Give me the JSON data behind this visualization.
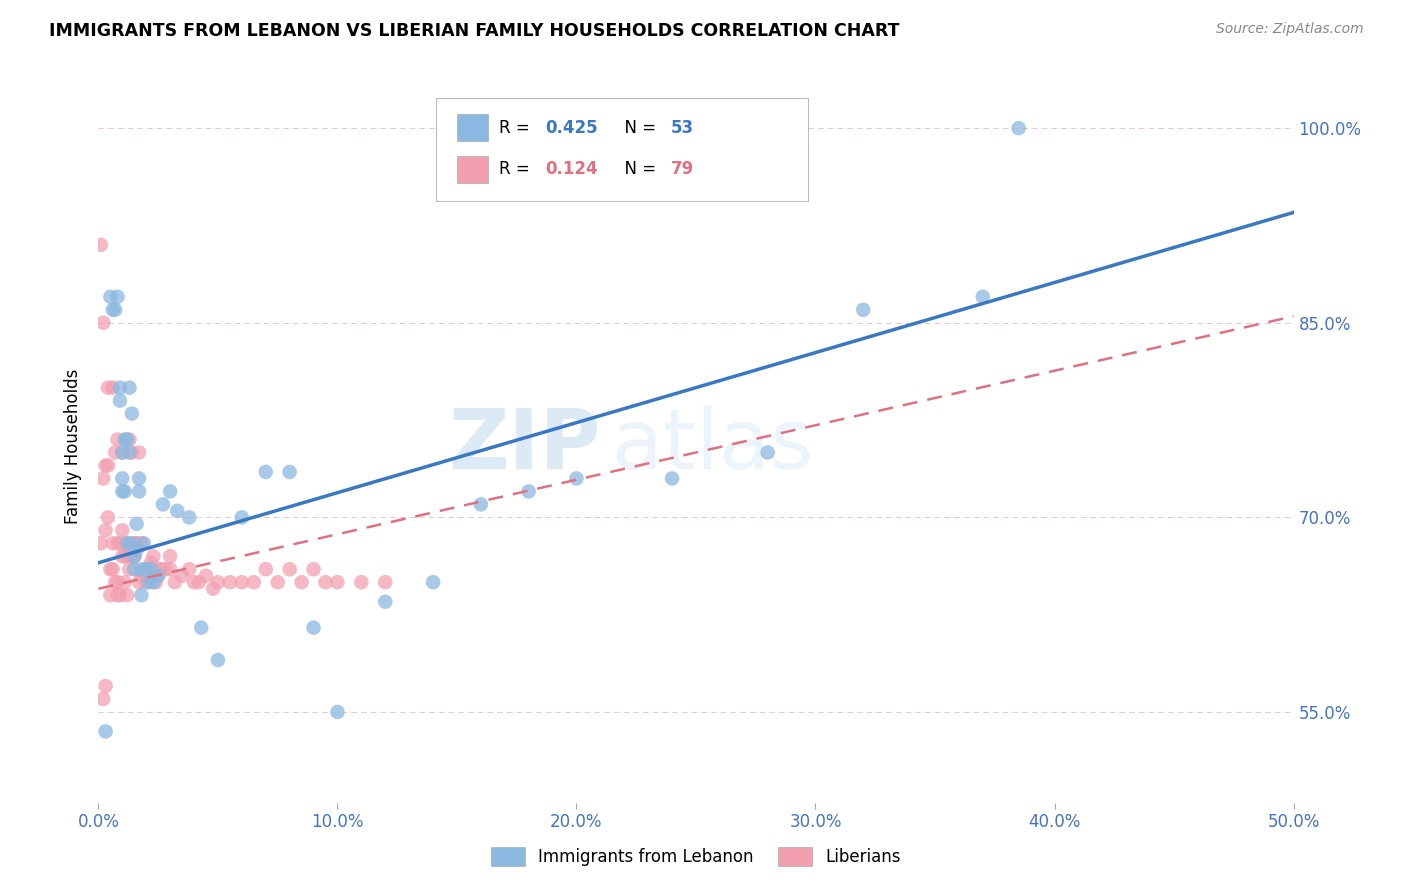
{
  "title": "IMMIGRANTS FROM LEBANON VS LIBERIAN FAMILY HOUSEHOLDS CORRELATION CHART",
  "source": "Source: ZipAtlas.com",
  "ylabel": "Family Households",
  "xlim": [
    0.0,
    0.5
  ],
  "ylim": [
    0.48,
    1.03
  ],
  "xticks": [
    0.0,
    0.1,
    0.2,
    0.3,
    0.4,
    0.5
  ],
  "xticklabels": [
    "0.0%",
    "10.0%",
    "20.0%",
    "30.0%",
    "40.0%",
    "50.0%"
  ],
  "yticks": [
    0.55,
    0.7,
    0.85,
    1.0
  ],
  "yticklabels": [
    "55.0%",
    "70.0%",
    "85.0%",
    "100.0%"
  ],
  "y_axis_color": "#4472C4",
  "x_axis_color": "#4472C4",
  "color_lebanon": "#8BB8E0",
  "color_liberian": "#F2A0B0",
  "color_trendline_lebanon": "#3A78C3",
  "color_trendline_liberian": "#E07080",
  "watermark_zip": "ZIP",
  "watermark_atlas": "atlas",
  "trendline_lb_x0": 0.0,
  "trendline_lb_y0": 0.665,
  "trendline_lb_x1": 0.5,
  "trendline_lb_y1": 0.935,
  "trendline_li_x0": 0.0,
  "trendline_li_y0": 0.645,
  "trendline_li_x1": 0.5,
  "trendline_li_y1": 0.855,
  "lebanon_scatter_x": [
    0.003,
    0.005,
    0.006,
    0.007,
    0.008,
    0.009,
    0.009,
    0.01,
    0.01,
    0.01,
    0.011,
    0.011,
    0.012,
    0.012,
    0.013,
    0.013,
    0.014,
    0.014,
    0.015,
    0.015,
    0.016,
    0.016,
    0.017,
    0.017,
    0.018,
    0.018,
    0.019,
    0.02,
    0.021,
    0.022,
    0.023,
    0.025,
    0.027,
    0.03,
    0.033,
    0.038,
    0.043,
    0.05,
    0.06,
    0.07,
    0.08,
    0.09,
    0.1,
    0.12,
    0.14,
    0.16,
    0.18,
    0.2,
    0.24,
    0.28,
    0.32,
    0.37,
    0.385
  ],
  "lebanon_scatter_y": [
    0.535,
    0.87,
    0.86,
    0.86,
    0.87,
    0.79,
    0.8,
    0.73,
    0.75,
    0.72,
    0.72,
    0.76,
    0.68,
    0.76,
    0.75,
    0.8,
    0.68,
    0.78,
    0.66,
    0.67,
    0.675,
    0.695,
    0.73,
    0.72,
    0.66,
    0.64,
    0.68,
    0.66,
    0.65,
    0.66,
    0.65,
    0.655,
    0.71,
    0.72,
    0.705,
    0.7,
    0.615,
    0.59,
    0.7,
    0.735,
    0.735,
    0.615,
    0.55,
    0.635,
    0.65,
    0.71,
    0.72,
    0.73,
    0.73,
    0.75,
    0.86,
    0.87,
    1.0
  ],
  "liberian_scatter_x": [
    0.001,
    0.001,
    0.002,
    0.002,
    0.003,
    0.003,
    0.004,
    0.004,
    0.005,
    0.005,
    0.006,
    0.006,
    0.007,
    0.007,
    0.008,
    0.008,
    0.008,
    0.009,
    0.009,
    0.01,
    0.01,
    0.011,
    0.011,
    0.012,
    0.012,
    0.013,
    0.013,
    0.014,
    0.014,
    0.015,
    0.015,
    0.016,
    0.016,
    0.017,
    0.017,
    0.018,
    0.019,
    0.02,
    0.02,
    0.021,
    0.022,
    0.023,
    0.024,
    0.025,
    0.026,
    0.028,
    0.03,
    0.032,
    0.035,
    0.038,
    0.04,
    0.042,
    0.045,
    0.048,
    0.05,
    0.055,
    0.06,
    0.065,
    0.07,
    0.075,
    0.08,
    0.085,
    0.09,
    0.095,
    0.1,
    0.11,
    0.12,
    0.002,
    0.003,
    0.004,
    0.006,
    0.008,
    0.01,
    0.012,
    0.015,
    0.018,
    0.022,
    0.026,
    0.03
  ],
  "liberian_scatter_y": [
    0.68,
    0.91,
    0.56,
    0.85,
    0.57,
    0.74,
    0.74,
    0.8,
    0.64,
    0.66,
    0.66,
    0.8,
    0.65,
    0.75,
    0.65,
    0.64,
    0.76,
    0.64,
    0.68,
    0.67,
    0.75,
    0.65,
    0.67,
    0.67,
    0.64,
    0.66,
    0.76,
    0.67,
    0.75,
    0.67,
    0.68,
    0.68,
    0.68,
    0.65,
    0.75,
    0.655,
    0.655,
    0.66,
    0.65,
    0.66,
    0.665,
    0.67,
    0.65,
    0.655,
    0.66,
    0.66,
    0.67,
    0.65,
    0.655,
    0.66,
    0.65,
    0.65,
    0.655,
    0.645,
    0.65,
    0.65,
    0.65,
    0.65,
    0.66,
    0.65,
    0.66,
    0.65,
    0.66,
    0.65,
    0.65,
    0.65,
    0.65,
    0.73,
    0.69,
    0.7,
    0.68,
    0.68,
    0.69,
    0.68,
    0.67,
    0.68,
    0.66,
    0.66,
    0.66
  ]
}
